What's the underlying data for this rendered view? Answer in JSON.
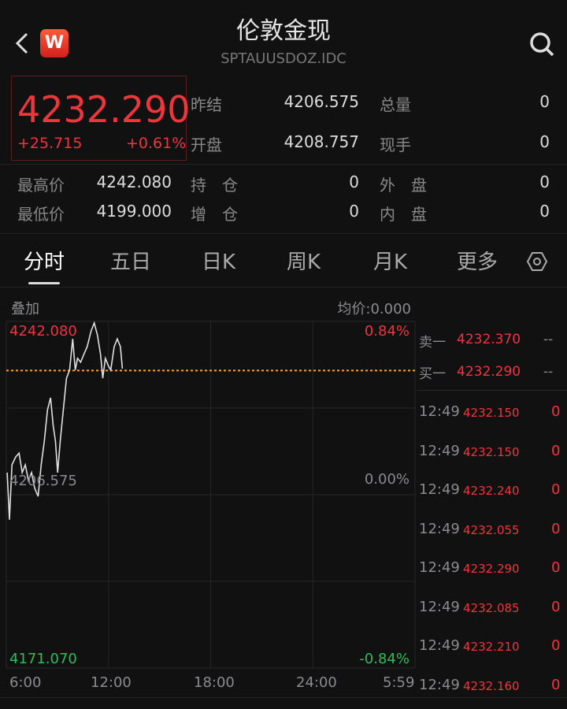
{
  "header": {
    "title": "伦敦金现",
    "code": "SPTAUUSDOZ.IDC",
    "logo": "W",
    "back_icon": "chevron-left-icon",
    "search_icon": "search-icon"
  },
  "quote": {
    "price": "4232.290",
    "change": "+25.715",
    "change_pct": "+0.61%",
    "fields": [
      {
        "label": "昨结",
        "value": "4206.575"
      },
      {
        "label": "总量",
        "value": "0"
      },
      {
        "label": "开盘",
        "value": "4208.757"
      },
      {
        "label": "现手",
        "value": "0"
      },
      {
        "label": "最高价",
        "value": "4242.080"
      },
      {
        "label": "持　仓",
        "value": "0"
      },
      {
        "label": "外　盘",
        "value": "0"
      },
      {
        "label": "最低价",
        "value": "4199.000"
      },
      {
        "label": "增　仓",
        "value": "0"
      },
      {
        "label": "内　盘",
        "value": "0"
      }
    ]
  },
  "tabs": [
    {
      "label": "分时",
      "active": true
    },
    {
      "label": "五日"
    },
    {
      "label": "日K"
    },
    {
      "label": "周K"
    },
    {
      "label": "月K"
    },
    {
      "label": "更多"
    }
  ],
  "chart": {
    "overlay": "叠加",
    "avg_price": "均价:0.000",
    "y_top": "4242.080",
    "y_mid": "4206.575",
    "y_bottom": "4171.070",
    "pct_top": "0.84%",
    "pct_mid": "0.00%",
    "pct_bottom": "-0.84%",
    "x_labels": [
      "6:00",
      "12:00",
      "18:00",
      "24:00",
      "5:59"
    ],
    "colors": {
      "line": "#e0e0e0",
      "current": "#f5a623",
      "up": "#f0343c",
      "down": "#2ebd5a"
    },
    "current_price": 4232.29,
    "series": [
      [
        "6:03",
        4211.3
      ],
      [
        "6:11",
        4201.6
      ],
      [
        "6:20",
        4212.9
      ],
      [
        "6:33",
        4214.5
      ],
      [
        "6:45",
        4215.3
      ],
      [
        "6:56",
        4211.3
      ],
      [
        "7:07",
        4212.9
      ],
      [
        "7:18",
        4209.7
      ],
      [
        "7:29",
        4211.3
      ],
      [
        "7:40",
        4208.1
      ],
      [
        "7:52",
        4206.4
      ],
      [
        "8:03",
        4212.9
      ],
      [
        "8:14",
        4217.8
      ],
      [
        "8:25",
        4224.2
      ],
      [
        "8:36",
        4226.7
      ],
      [
        "8:45",
        4221.0
      ],
      [
        "8:53",
        4217.8
      ],
      [
        "9:01",
        4211.3
      ],
      [
        "9:10",
        4217.8
      ],
      [
        "9:21",
        4224.2
      ],
      [
        "9:32",
        4230.7
      ],
      [
        "9:43",
        4232.4
      ],
      [
        "9:54",
        4238.8
      ],
      [
        "10:03",
        4232.4
      ],
      [
        "10:11",
        4234.8
      ],
      [
        "10:22",
        4234.0
      ],
      [
        "10:33",
        4235.6
      ],
      [
        "10:45",
        4237.2
      ],
      [
        "10:59",
        4240.5
      ],
      [
        "11:10",
        4242.1
      ],
      [
        "11:21",
        4239.6
      ],
      [
        "11:32",
        4235.6
      ],
      [
        "11:40",
        4230.7
      ],
      [
        "11:49",
        4234.8
      ],
      [
        "12:00",
        4233.2
      ],
      [
        "12:08",
        4232.4
      ],
      [
        "12:20",
        4237.2
      ],
      [
        "12:31",
        4238.8
      ],
      [
        "12:42",
        4237.2
      ],
      [
        "12:49",
        4232.7
      ]
    ]
  },
  "orderbook": {
    "ask": {
      "label": "卖一",
      "price": "4232.370",
      "vol": "--"
    },
    "bid": {
      "label": "买一",
      "price": "4232.290",
      "vol": "--"
    },
    "ticks": [
      {
        "time": "12:49",
        "price": "4232.150",
        "vol": "0"
      },
      {
        "time": "12:49",
        "price": "4232.150",
        "vol": "0"
      },
      {
        "time": "12:49",
        "price": "4232.240",
        "vol": "0"
      },
      {
        "time": "12:49",
        "price": "4232.055",
        "vol": "0"
      },
      {
        "time": "12:49",
        "price": "4232.290",
        "vol": "0"
      },
      {
        "time": "12:49",
        "price": "4232.085",
        "vol": "0"
      },
      {
        "time": "12:49",
        "price": "4232.210",
        "vol": "0"
      },
      {
        "time": "12:49",
        "price": "4232.160",
        "vol": "0"
      }
    ]
  }
}
